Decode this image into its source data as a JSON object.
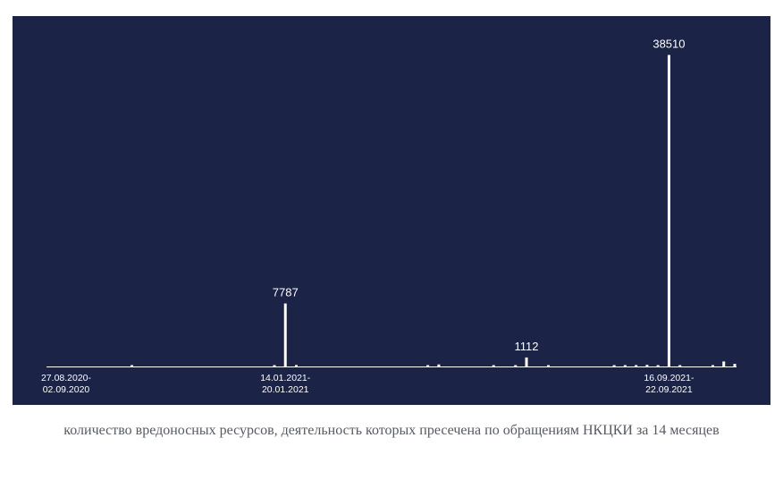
{
  "chart_data": {
    "type": "bar",
    "title": "",
    "xlabel": "",
    "ylabel": "",
    "ylim": [
      0,
      40000
    ],
    "grid": false,
    "legend": "none",
    "bar_color": "#ffffff",
    "background_color": "#1b2346",
    "tick_labels": [
      {
        "index": 0,
        "lines": [
          "27.08.2020-",
          "02.09.2020"
        ]
      },
      {
        "index": 20,
        "lines": [
          "14.01.2021-",
          "20.01.2021"
        ]
      },
      {
        "index": 55,
        "lines": [
          "16.09.2021-",
          "22.09.2021"
        ]
      }
    ],
    "data_labels": [
      {
        "index": 20,
        "text": "7787"
      },
      {
        "index": 42,
        "text": "1112"
      },
      {
        "index": 55,
        "text": "38510"
      }
    ],
    "values": [
      0,
      0,
      0,
      0,
      0,
      0,
      150,
      0,
      0,
      0,
      0,
      0,
      0,
      0,
      0,
      0,
      0,
      0,
      0,
      120,
      7787,
      180,
      0,
      0,
      0,
      0,
      0,
      0,
      0,
      0,
      0,
      0,
      0,
      90,
      250,
      0,
      0,
      0,
      0,
      130,
      0,
      160,
      1112,
      0,
      140,
      0,
      0,
      0,
      0,
      0,
      110,
      160,
      170,
      200,
      150,
      38510,
      130,
      0,
      0,
      120,
      620,
      330
    ]
  },
  "caption": "количество вредоносных ресурсов, деятельность которых пресечена по обращениям НКЦКИ за 14 месяцев"
}
